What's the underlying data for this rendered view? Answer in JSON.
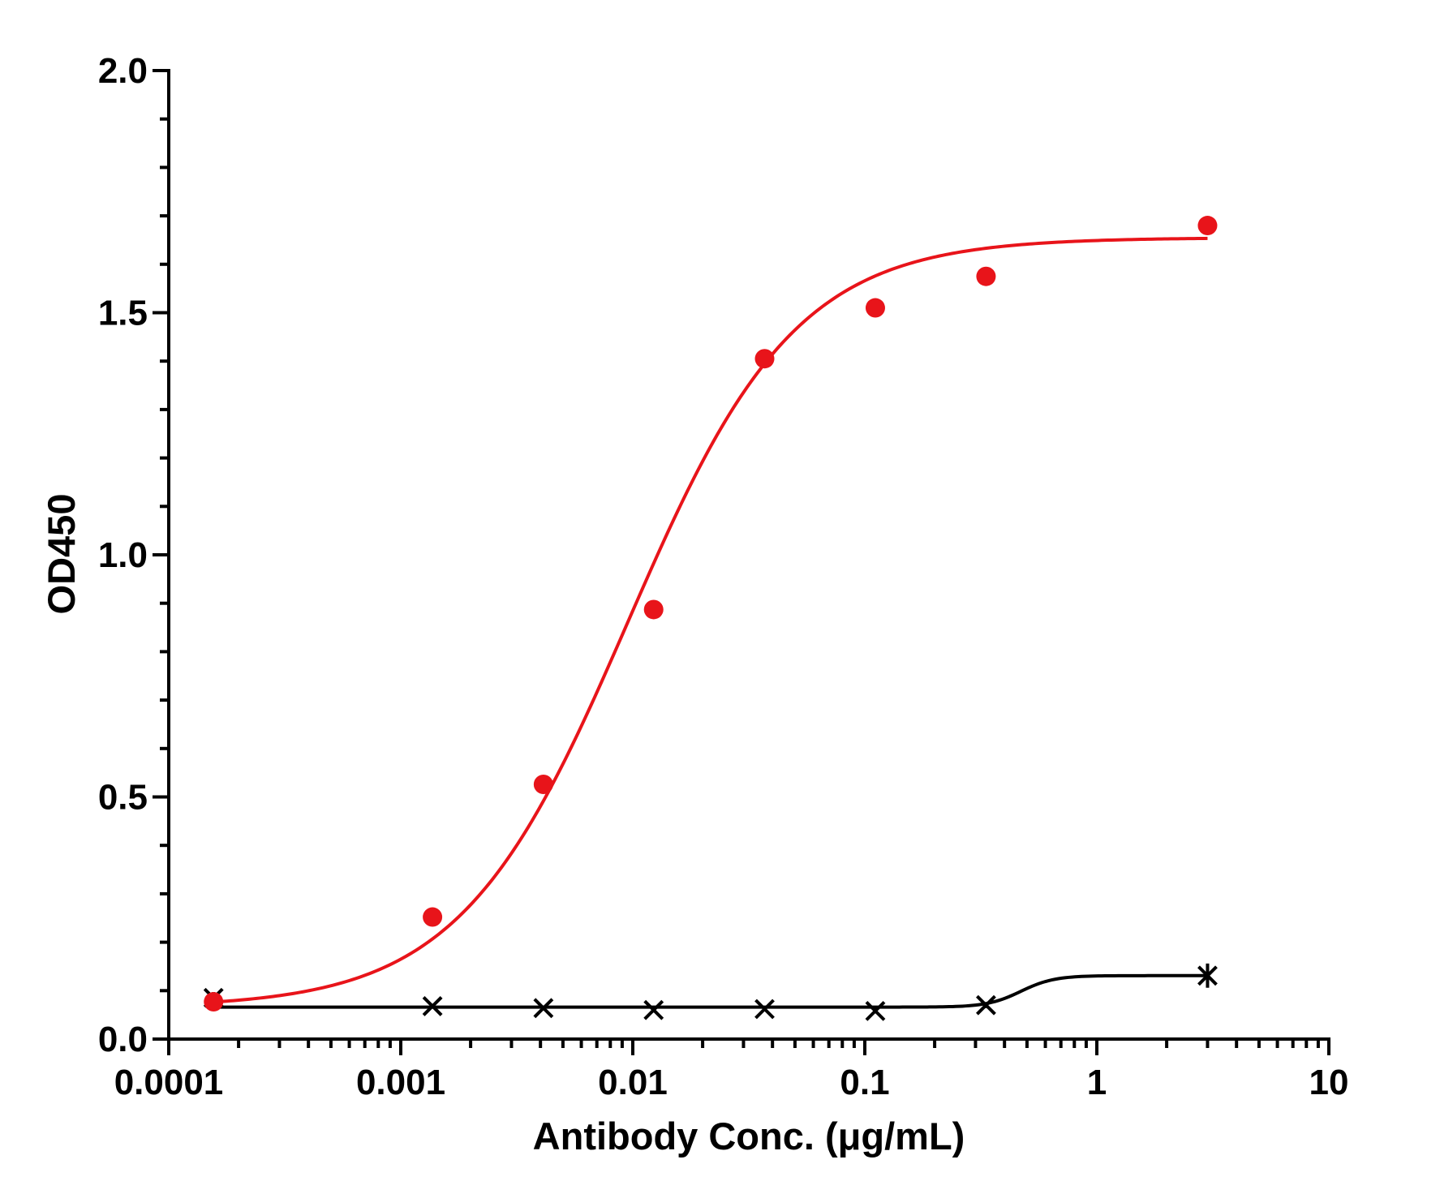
{
  "chart_data": {
    "type": "scatter",
    "title": "",
    "xlabel": "Antibody Conc. (μg/mL)",
    "ylabel": "OD450",
    "x_scale": "log",
    "xlim": [
      0.0001,
      10
    ],
    "ylim": [
      0,
      2.0
    ],
    "x_ticks": [
      0.0001,
      0.001,
      0.01,
      0.1,
      1,
      10
    ],
    "x_tick_labels": [
      "0.0001",
      "0.001",
      "0.01",
      "0.1",
      "1",
      "10"
    ],
    "y_ticks": [
      0,
      0.5,
      1.0,
      1.5,
      2.0
    ],
    "y_tick_labels": [
      "0.0",
      "0.5",
      "1.0",
      "1.5",
      "2.0"
    ],
    "grid": false,
    "legend": "none",
    "series": [
      {
        "color": "#e8141a",
        "marker": "circle",
        "x": [
          0.000156,
          0.00137,
          0.00412,
          0.0123,
          0.037,
          0.111,
          0.333,
          3.0
        ],
        "y": [
          0.077,
          0.252,
          0.526,
          0.887,
          1.405,
          1.51,
          1.575,
          1.68
        ],
        "fit": {
          "model": "4PL",
          "bottom": 0.065,
          "top": 1.655,
          "ec50": 0.0095,
          "hill": 1.2
        }
      },
      {
        "color": "#000000",
        "marker": "x",
        "x": [
          0.000156,
          0.00137,
          0.00412,
          0.0123,
          0.037,
          0.111,
          0.333,
          3.0
        ],
        "y": [
          0.085,
          0.068,
          0.064,
          0.06,
          0.062,
          0.058,
          0.07,
          0.131
        ],
        "error": [
          0.012,
          0.004,
          0.004,
          0.005,
          0.004,
          0.005,
          0.006,
          0.025
        ],
        "fit": {
          "model": "4PL",
          "bottom": 0.066,
          "top": 0.131,
          "ec50": 0.47,
          "hill": 6
        }
      }
    ]
  }
}
